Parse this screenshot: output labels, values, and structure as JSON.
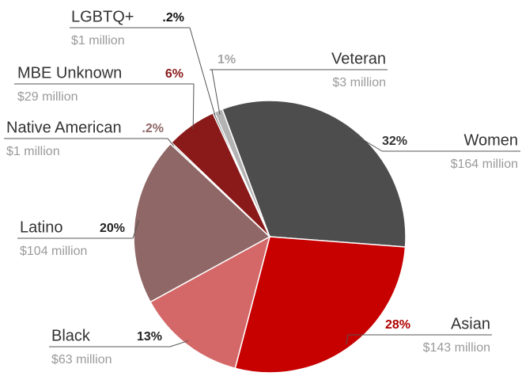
{
  "chart_data": {
    "type": "pie",
    "categories": [
      "Veteran",
      "Women",
      "Asian",
      "Black",
      "Latino",
      "Native American",
      "MBE Unknown",
      "LGBTQ+"
    ],
    "values": [
      1,
      32,
      28,
      13,
      20,
      0.2,
      6,
      0.2
    ],
    "value_labels": [
      "1%",
      "32%",
      "28%",
      "13%",
      "20%",
      ".2%",
      "6%",
      ".2%"
    ],
    "amount_labels": [
      "$3 million",
      "$164 million",
      "$143 million",
      "$63 million",
      "$104 million",
      "$1 million",
      "$29 million",
      "$1 million"
    ],
    "colors": [
      "#b3b3b3",
      "#4d4d4d",
      "#c70000",
      "#d46868",
      "#8f6767",
      "#9a9a9a",
      "#8a1a1a",
      "#111111"
    ],
    "label_colors": [
      "#a6a6a6",
      "#333333",
      "#b00000",
      "#222222",
      "#222222",
      "#8f6767",
      "#8a1a1a",
      "#111111"
    ]
  }
}
